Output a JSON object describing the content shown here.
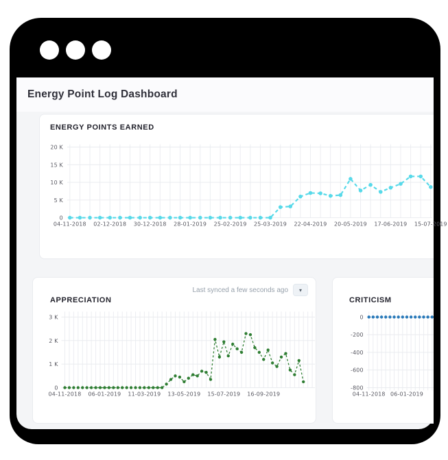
{
  "header": {
    "title": "Energy Point Log Dashboard"
  },
  "ui": {
    "last_synced_label": "Last synced a few seconds ago",
    "caret": "▾"
  },
  "colors": {
    "frame": "#000000",
    "content_bg": "#f4f5f7",
    "header_bg": "#fbfbfd",
    "card_bg": "#ffffff",
    "card_border": "#e9ebef",
    "grid_vertical": "#ecedf1",
    "grid_horizontal": "#e9ebef",
    "axis_text": "#56565f",
    "energy_line": "#57d9e9",
    "appreciation_line": "#2e7d32",
    "criticism_line": "#2577b8"
  },
  "chart_data": [
    {
      "id": "energy-points-earned",
      "type": "line",
      "title": "ENERGY POINTS EARNED",
      "color": "#57d9e9",
      "x_tick_every": 4,
      "x_tick_labels": [
        "04-11-2018",
        "02-12-2018",
        "30-12-2018",
        "28-01-2019",
        "25-02-2019",
        "25-03-2019",
        "22-04-2019",
        "20-05-2019",
        "17-06-2019",
        "15-07-2019"
      ],
      "values": [
        0,
        0,
        0,
        0,
        0,
        0,
        0,
        0,
        0,
        0,
        0,
        0,
        0,
        0,
        0,
        0,
        0,
        0,
        0,
        0,
        0,
        3000,
        3200,
        6000,
        7000,
        6900,
        6200,
        6400,
        11000,
        7700,
        9300,
        7300,
        8500,
        9600,
        11700,
        11700,
        8700
      ],
      "ylim": [
        0,
        20000
      ],
      "y_ticks": [
        {
          "label": "0",
          "value": 0
        },
        {
          "label": "5 K",
          "value": 5000
        },
        {
          "label": "10 K",
          "value": 10000
        },
        {
          "label": "15 K",
          "value": 15000
        },
        {
          "label": "20 K",
          "value": 20000
        }
      ],
      "grid": true,
      "line_style": "dashed-with-dots"
    },
    {
      "id": "appreciation",
      "type": "line",
      "title": "APPRECIATION",
      "color": "#2e7d32",
      "x_tick_every": 9,
      "x_tick_labels": [
        "04-11-2018",
        "06-01-2019",
        "11-03-2019",
        "13-05-2019",
        "15-07-2019",
        "16-09-2019"
      ],
      "values": [
        0,
        0,
        0,
        0,
        0,
        0,
        0,
        0,
        0,
        0,
        0,
        0,
        0,
        0,
        0,
        0,
        0,
        0,
        0,
        0,
        0,
        0,
        0,
        150,
        350,
        500,
        450,
        250,
        400,
        550,
        500,
        700,
        650,
        350,
        2050,
        1300,
        1950,
        1350,
        1850,
        1650,
        1500,
        2300,
        2250,
        1700,
        1500,
        1200,
        1600,
        1050,
        900,
        1300,
        1450,
        750,
        550,
        1150,
        250
      ],
      "ylim": [
        0,
        3000
      ],
      "y_ticks": [
        {
          "label": "0",
          "value": 0
        },
        {
          "label": "1 K",
          "value": 1000
        },
        {
          "label": "2 K",
          "value": 2000
        },
        {
          "label": "3 K",
          "value": 3000
        }
      ],
      "grid": true,
      "line_style": "dashed-with-dots"
    },
    {
      "id": "criticism",
      "type": "line",
      "title": "CRITICISM",
      "color": "#2577b8",
      "x_tick_every": 9,
      "x_tick_labels": [
        "04-11-2018",
        "06-01-2019"
      ],
      "values": [
        0,
        0,
        0,
        0,
        0,
        0,
        0,
        0,
        0,
        0,
        0,
        0,
        0,
        0,
        0,
        0
      ],
      "ylim": [
        -800,
        0
      ],
      "y_ticks": [
        {
          "label": "0",
          "value": 0
        },
        {
          "label": "-200",
          "value": -200
        },
        {
          "label": "-400",
          "value": -400
        },
        {
          "label": "-600",
          "value": -600
        },
        {
          "label": "-800",
          "value": -800
        }
      ],
      "grid": true,
      "line_style": "dashed-with-dots"
    }
  ]
}
